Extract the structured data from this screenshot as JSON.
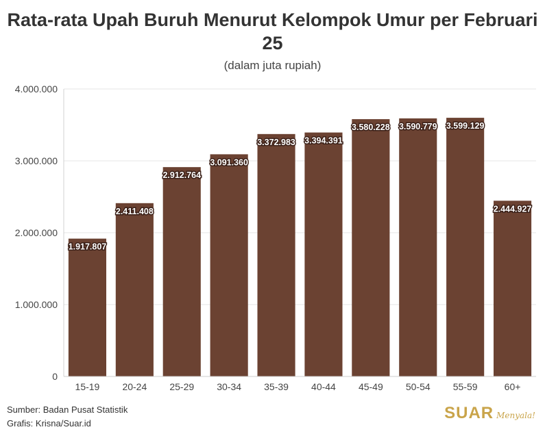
{
  "chart_data": {
    "type": "bar",
    "title": "Rata-rata Upah Buruh Menurut Kelompok Umur per Februari 25",
    "subtitle": "(dalam juta rupiah)",
    "categories": [
      "15-19",
      "20-24",
      "25-29",
      "30-34",
      "35-39",
      "40-44",
      "45-49",
      "50-54",
      "55-59",
      "60+"
    ],
    "values": [
      1917807,
      2411408,
      2912764,
      3091360,
      3372983,
      3394391,
      3580228,
      3590779,
      3599129,
      2444927
    ],
    "value_labels": [
      "1.917.807",
      "2.411.408",
      "2.912.764",
      "3.091.360",
      "3.372.983",
      "3.394.391",
      "3.580.228",
      "3.590.779",
      "3.599.129",
      "2.444.927"
    ],
    "ylim": [
      0,
      4000000
    ],
    "yticks": [
      0,
      1000000,
      2000000,
      3000000,
      4000000
    ],
    "ytick_labels": [
      "0",
      "1.000.000",
      "2.000.000",
      "3.000.000",
      "4.000.000"
    ],
    "xlabel": "",
    "ylabel": "",
    "grid": true,
    "bar_color": "#6b4232"
  },
  "footer": {
    "source": "Sumber: Badan Pusat Statistik",
    "credit": "Grafis: Krisna/Suar.id"
  },
  "brand": {
    "name": "SUAR",
    "tagline": "Menyala!",
    "color": "#c9a44a"
  }
}
